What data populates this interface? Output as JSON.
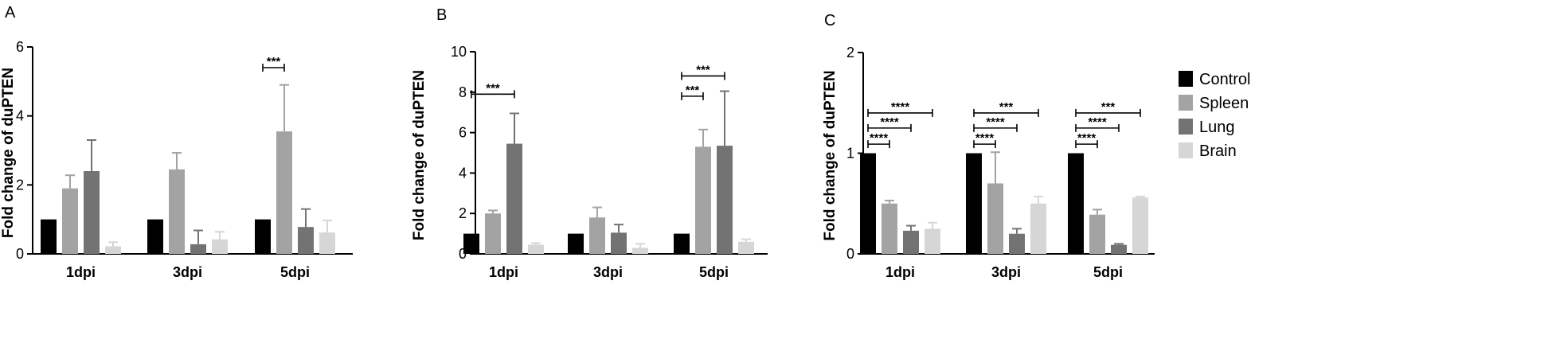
{
  "colors": {
    "control": "#000000",
    "spleen": "#a3a3a3",
    "lung": "#737373",
    "brain": "#d6d6d6"
  },
  "legend": [
    {
      "label": "Control",
      "color_key": "control"
    },
    {
      "label": "Spleen",
      "color_key": "spleen"
    },
    {
      "label": "Lung",
      "color_key": "lung"
    },
    {
      "label": "Brain",
      "color_key": "brain"
    }
  ],
  "chart_data": [
    {
      "panel": "A",
      "type": "bar",
      "ylabel": "Fold change of duPTEN",
      "xlabel": "",
      "ylim": [
        0,
        6
      ],
      "yticks": [
        "0",
        "2",
        "4",
        "6"
      ],
      "categories": [
        "1dpi",
        "3dpi",
        "5dpi"
      ],
      "series": [
        {
          "name": "Control",
          "values": [
            1.0,
            1.0,
            1.0
          ],
          "errors": [
            0,
            0,
            0
          ]
        },
        {
          "name": "Spleen",
          "values": [
            1.9,
            2.45,
            3.55
          ],
          "errors": [
            0.38,
            0.48,
            1.35
          ]
        },
        {
          "name": "Lung",
          "values": [
            2.4,
            0.28,
            0.78
          ],
          "errors": [
            0.9,
            0.4,
            0.52
          ]
        },
        {
          "name": "Brain",
          "values": [
            0.22,
            0.42,
            0.62
          ],
          "errors": [
            0.12,
            0.22,
            0.35
          ]
        }
      ],
      "annotations": [
        {
          "label": "***",
          "category": 2,
          "from_series": 0,
          "to_series": 1,
          "y": 5.4
        }
      ]
    },
    {
      "panel": "B",
      "type": "bar",
      "ylabel": "Fold change of duPTEN",
      "xlabel": "",
      "ylim": [
        0,
        10
      ],
      "yticks": [
        "0",
        "2",
        "4",
        "6",
        "8",
        "10"
      ],
      "categories": [
        "1dpi",
        "3dpi",
        "5dpi"
      ],
      "series": [
        {
          "name": "Control",
          "values": [
            1.0,
            1.0,
            1.0
          ],
          "errors": [
            0,
            0,
            0
          ]
        },
        {
          "name": "Spleen",
          "values": [
            2.0,
            1.8,
            5.3
          ],
          "errors": [
            0.15,
            0.5,
            0.85
          ]
        },
        {
          "name": "Lung",
          "values": [
            5.45,
            1.05,
            5.35
          ],
          "errors": [
            1.5,
            0.4,
            2.7
          ]
        },
        {
          "name": "Brain",
          "values": [
            0.45,
            0.3,
            0.6
          ],
          "errors": [
            0.08,
            0.2,
            0.12
          ]
        }
      ],
      "annotations": [
        {
          "label": "***",
          "category": 0,
          "from_series": 0,
          "to_series": 2,
          "y": 7.9
        },
        {
          "label": "***",
          "category": 2,
          "from_series": 0,
          "to_series": 2,
          "y": 8.8
        },
        {
          "label": "***",
          "category": 2,
          "from_series": 0,
          "to_series": 1,
          "y": 7.8
        }
      ]
    },
    {
      "panel": "C",
      "type": "bar",
      "ylabel": "Fold change of duPTEN",
      "xlabel": "",
      "ylim": [
        0,
        2
      ],
      "yticks": [
        "0",
        "1",
        "2"
      ],
      "categories": [
        "1dpi",
        "3dpi",
        "5dpi"
      ],
      "series": [
        {
          "name": "Control",
          "values": [
            1.0,
            1.0,
            1.0
          ],
          "errors": [
            0,
            0,
            0
          ]
        },
        {
          "name": "Spleen",
          "values": [
            0.5,
            0.7,
            0.39
          ],
          "errors": [
            0.03,
            0.31,
            0.05
          ]
        },
        {
          "name": "Lung",
          "values": [
            0.23,
            0.2,
            0.09
          ],
          "errors": [
            0.05,
            0.05,
            0.01
          ]
        },
        {
          "name": "Brain",
          "values": [
            0.25,
            0.5,
            0.56
          ],
          "errors": [
            0.06,
            0.07,
            0.01
          ]
        }
      ],
      "annotations": [
        {
          "label": "****",
          "category": 0,
          "from_series": 0,
          "to_series": 1,
          "y": 1.09
        },
        {
          "label": "****",
          "category": 0,
          "from_series": 0,
          "to_series": 2,
          "y": 1.25
        },
        {
          "label": "****",
          "category": 0,
          "from_series": 0,
          "to_series": 3,
          "y": 1.4
        },
        {
          "label": "****",
          "category": 1,
          "from_series": 0,
          "to_series": 1,
          "y": 1.09
        },
        {
          "label": "****",
          "category": 1,
          "from_series": 0,
          "to_series": 2,
          "y": 1.25
        },
        {
          "label": "***",
          "category": 1,
          "from_series": 0,
          "to_series": 3,
          "y": 1.4
        },
        {
          "label": "****",
          "category": 2,
          "from_series": 0,
          "to_series": 1,
          "y": 1.09
        },
        {
          "label": "****",
          "category": 2,
          "from_series": 0,
          "to_series": 2,
          "y": 1.25
        },
        {
          "label": "***",
          "category": 2,
          "from_series": 0,
          "to_series": 3,
          "y": 1.4
        }
      ]
    }
  ]
}
